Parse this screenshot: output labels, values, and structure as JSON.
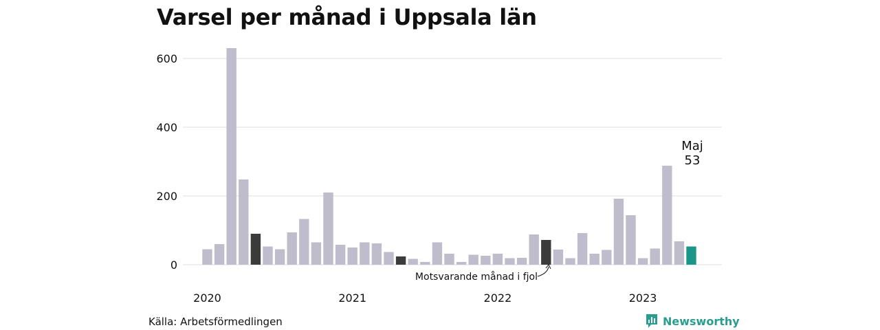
{
  "chart_data": {
    "type": "bar",
    "title": "Varsel per månad i Uppsala län",
    "xlabel": "",
    "ylabel": "",
    "ylim": [
      0,
      650
    ],
    "yticks": [
      0,
      200,
      400,
      600
    ],
    "year_labels": [
      "2020",
      "2021",
      "2022",
      "2023"
    ],
    "categories": [
      "2020-01",
      "2020-02",
      "2020-03",
      "2020-04",
      "2020-05",
      "2020-06",
      "2020-07",
      "2020-08",
      "2020-09",
      "2020-10",
      "2020-11",
      "2020-12",
      "2021-01",
      "2021-02",
      "2021-03",
      "2021-04",
      "2021-05",
      "2021-06",
      "2021-07",
      "2021-08",
      "2021-09",
      "2021-10",
      "2021-11",
      "2021-12",
      "2022-01",
      "2022-02",
      "2022-03",
      "2022-04",
      "2022-05",
      "2022-06",
      "2022-07",
      "2022-08",
      "2022-09",
      "2022-10",
      "2022-11",
      "2022-12",
      "2023-01",
      "2023-02",
      "2023-03",
      "2023-04",
      "2023-05"
    ],
    "values": [
      45,
      60,
      630,
      248,
      90,
      53,
      45,
      94,
      133,
      65,
      210,
      58,
      50,
      65,
      62,
      37,
      24,
      17,
      8,
      65,
      32,
      8,
      29,
      26,
      32,
      19,
      20,
      88,
      72,
      44,
      19,
      92,
      32,
      43,
      192,
      144,
      19,
      47,
      288,
      68,
      53
    ],
    "highlight": {
      "same_month_previous_years": [
        "2020-05",
        "2021-05",
        "2022-05"
      ],
      "current": "2023-05"
    },
    "colors": {
      "default": "#bfbdcb",
      "same_month": "#3b3b3b",
      "current": "#1a9688",
      "grid": "#dcdcdc"
    },
    "annotations": {
      "same_month_label": "Motsvarande månad i fjol",
      "current_month": "Maj",
      "current_value": "53"
    },
    "grid": true,
    "legend": "none"
  },
  "source": "Källa: Arbetsförmedlingen",
  "brand": {
    "name": "Newsworthy",
    "color": "#2a9d8f",
    "icon": "bar-chart-speech-bubble-icon"
  }
}
